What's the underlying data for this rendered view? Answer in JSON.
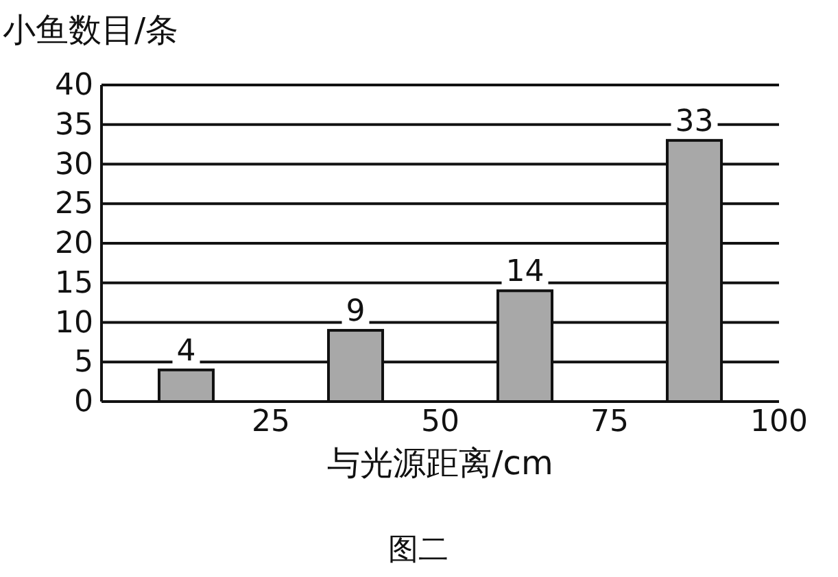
{
  "chart_data": {
    "type": "bar",
    "ylabel": "小鱼数目/条",
    "xlabel": "与光源距离/cm",
    "annotations": [
      "图二"
    ],
    "x": [
      12.5,
      37.5,
      62.5,
      87.5
    ],
    "values": [
      4,
      9,
      14,
      33
    ],
    "color": "#a8a8a8",
    "data_labels": true,
    "xlim": [
      0,
      100
    ],
    "xticks": [
      25,
      50,
      75,
      100
    ],
    "ylim": [
      0,
      40
    ],
    "yticks": [
      0,
      5,
      10,
      15,
      20,
      25,
      30,
      35,
      40
    ],
    "grid": "y"
  }
}
